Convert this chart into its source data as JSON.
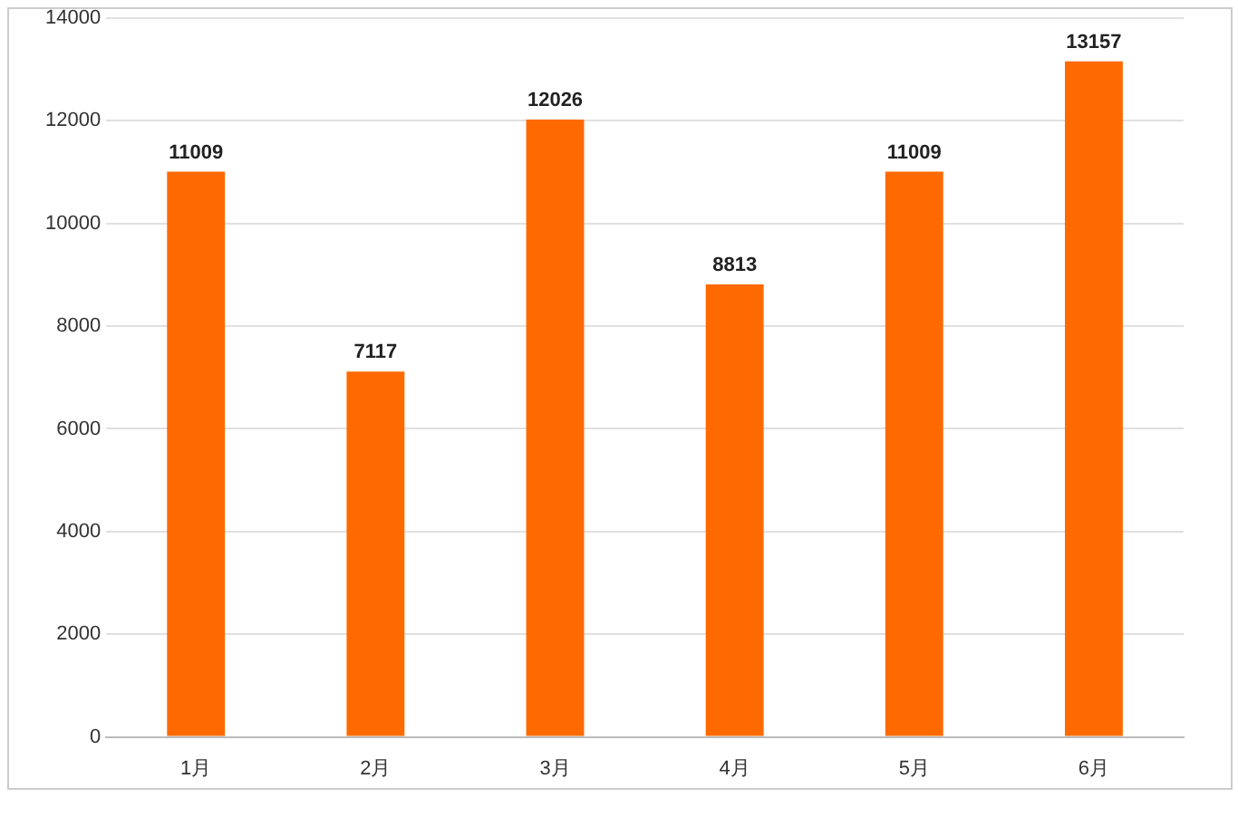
{
  "chart_data": {
    "type": "bar",
    "categories": [
      "1月",
      "2月",
      "3月",
      "4月",
      "5月",
      "6月"
    ],
    "values": [
      11009,
      7117,
      12026,
      8813,
      11009,
      13157
    ],
    "color": "#ff6a00",
    "ylim": [
      0,
      14000
    ],
    "yticks": [
      0,
      2000,
      4000,
      6000,
      8000,
      10000,
      12000,
      14000
    ],
    "grid": "y",
    "data_labels": true
  }
}
